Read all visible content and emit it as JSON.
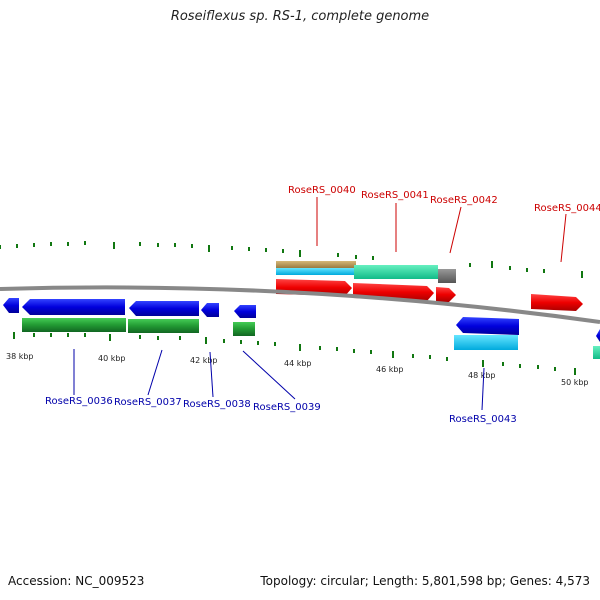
{
  "title": "Roseiflexus sp. RS-1, complete genome",
  "footer": {
    "accession": "Accession: NC_009523",
    "summary": "Topology: circular; Length: 5,801,598 bp; Genes: 4,573"
  },
  "scale": {
    "ticks": [
      {
        "kbp": 38,
        "label": "38 kbp"
      },
      {
        "kbp": 40,
        "label": "40 kbp"
      },
      {
        "kbp": 42,
        "label": "42 kbp"
      },
      {
        "kbp": 44,
        "label": "44 kbp"
      },
      {
        "kbp": 46,
        "label": "46 kbp"
      },
      {
        "kbp": 48,
        "label": "48 kbp"
      },
      {
        "kbp": 50,
        "label": "50 kbp"
      }
    ]
  },
  "genes": [
    {
      "id": "RoseRS_0036",
      "strand": "minus",
      "label_color": "#0000aa"
    },
    {
      "id": "RoseRS_0037",
      "strand": "minus",
      "label_color": "#0000aa"
    },
    {
      "id": "RoseRS_0038",
      "strand": "minus",
      "label_color": "#0000aa"
    },
    {
      "id": "RoseRS_0039",
      "strand": "minus",
      "label_color": "#0000aa"
    },
    {
      "id": "RoseRS_0040",
      "strand": "plus",
      "label_color": "#cc0000"
    },
    {
      "id": "RoseRS_0041",
      "strand": "plus",
      "label_color": "#cc0000"
    },
    {
      "id": "RoseRS_0042",
      "strand": "plus",
      "label_color": "#cc0000"
    },
    {
      "id": "RoseRS_0043",
      "strand": "minus",
      "label_color": "#0000aa"
    },
    {
      "id": "RoseRS_0044",
      "strand": "plus",
      "label_color": "#cc0000"
    }
  ],
  "colors": {
    "cds_plus": "#ee0000",
    "cds_minus": "#0000ee",
    "gene_minus": "#22aa33",
    "cyan_track": "#00ccff",
    "teal_track": "#22ddaa",
    "tan_track": "#bb9955",
    "grey_track": "#777777",
    "backbone": "#888888",
    "tick": "#117711"
  }
}
